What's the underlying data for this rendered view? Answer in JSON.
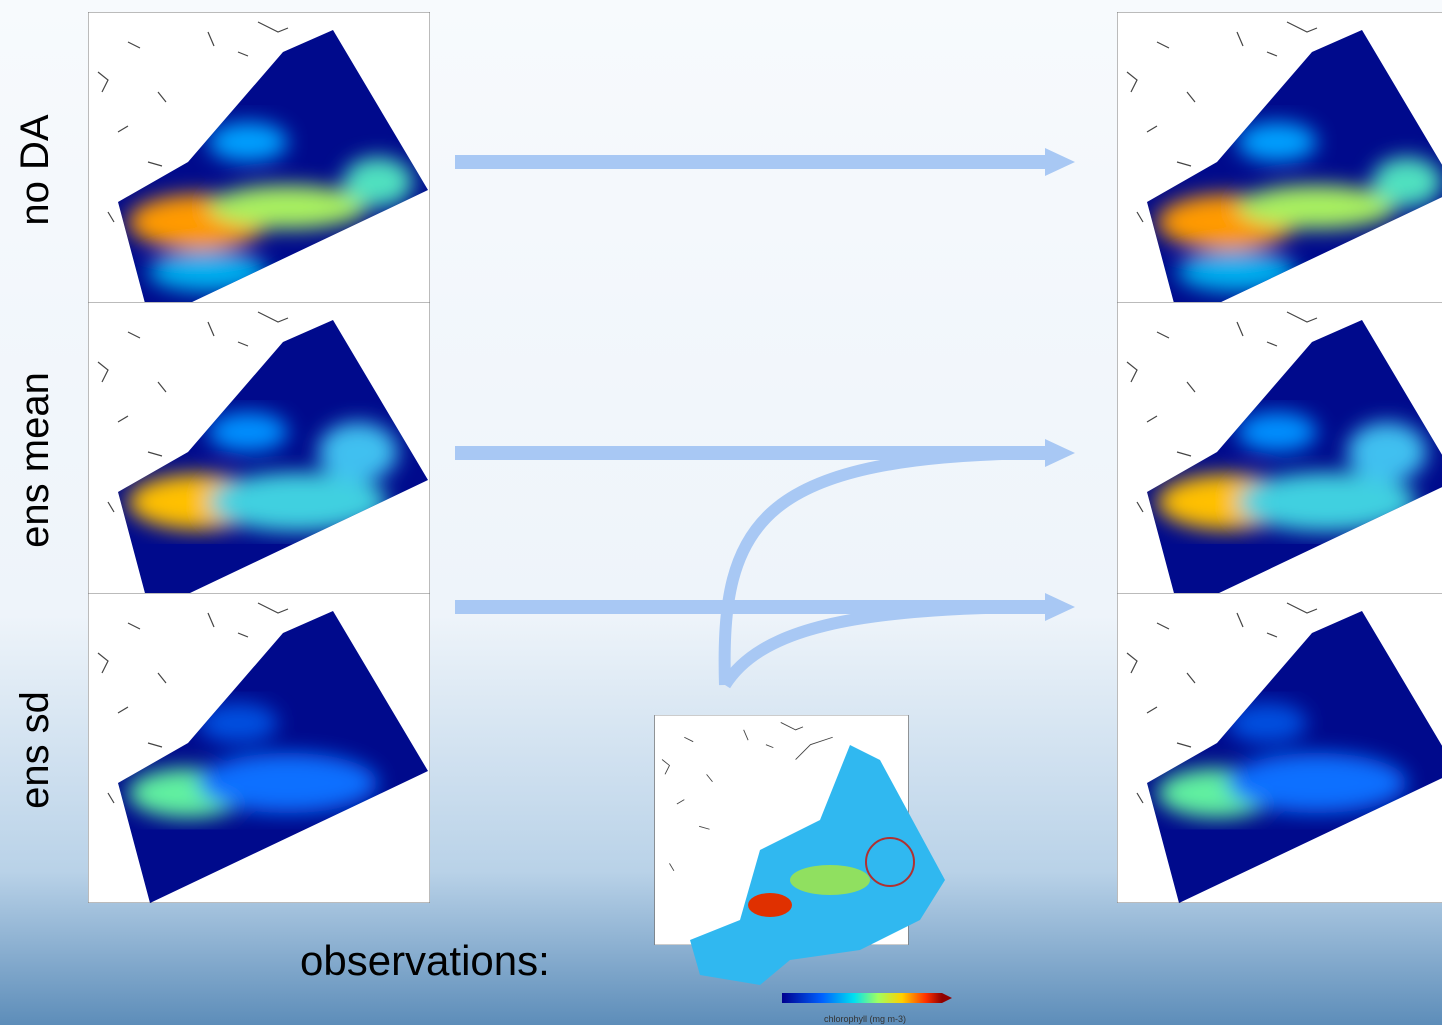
{
  "rows": [
    {
      "label": "no DA"
    },
    {
      "label": "ens mean"
    },
    {
      "label": "ens sd"
    }
  ],
  "observations": {
    "label": "observations:",
    "colorbar_label": "chlorophyll (mg m-3)"
  }
}
